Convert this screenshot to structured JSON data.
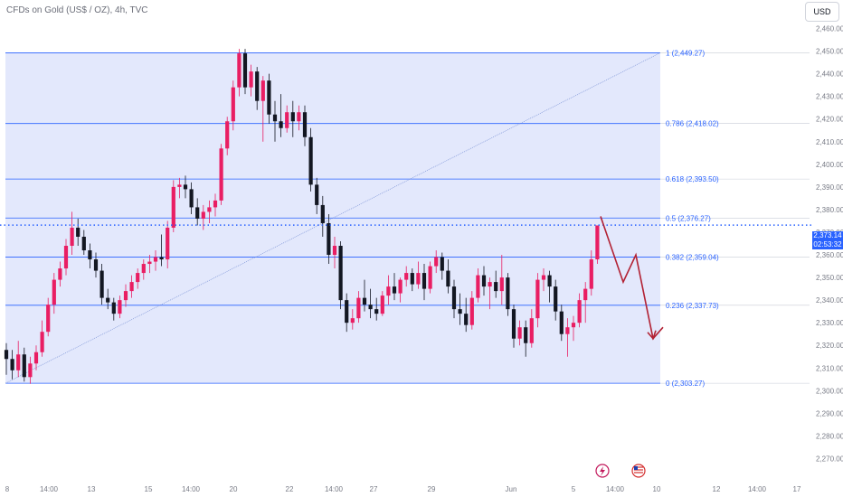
{
  "header": {
    "title": "CFDs on Gold (US$ / OZ), 4h, TVC",
    "currency": "USD"
  },
  "current_price": {
    "value": "2,373.14",
    "countdown": "02:53:32",
    "raw": 2373.14
  },
  "colors": {
    "up": "#e91e63",
    "down": "#131722",
    "fib_line": "#2962ff",
    "fib_fill": "#e3e8fc",
    "fib_text": "#2962ff",
    "arrow": "#b22234",
    "price_line": "#2962ff"
  },
  "icons": [
    "lightning-event-icon",
    "us-flag-event-icon"
  ],
  "chart_data": {
    "type": "candlestick",
    "title": "CFDs on Gold (US$ / OZ), 4h, TVC",
    "ylim": [
      2265,
      2467
    ],
    "y_ticks": [
      "2,270.00",
      "2,280.00",
      "2,290.00",
      "2,300.00",
      "2,310.00",
      "2,320.00",
      "2,330.00",
      "2,340.00",
      "2,350.00",
      "2,360.00",
      "2,370.00",
      "2,380.00",
      "2,390.00",
      "2,400.00",
      "2,410.00",
      "2,420.00",
      "2,430.00",
      "2,440.00",
      "2,450.00",
      "2,460.00"
    ],
    "x_ticks": [
      "8",
      "14:00",
      "13",
      "15",
      "14:00",
      "20",
      "22",
      "14:00",
      "27",
      "29",
      "Jun",
      "5",
      "14:00",
      "10",
      "12",
      "14:00",
      "17"
    ],
    "fib_levels": [
      {
        "ratio": "1",
        "price": 2449.27,
        "label": "1 (2,449.27)"
      },
      {
        "ratio": "0.786",
        "price": 2418.02,
        "label": "0.786 (2,418.02)"
      },
      {
        "ratio": "0.618",
        "price": 2393.5,
        "label": "0.618 (2,393.50)"
      },
      {
        "ratio": "0.5",
        "price": 2376.27,
        "label": "0.5 (2,376.27)"
      },
      {
        "ratio": "0.382",
        "price": 2359.04,
        "label": "0.382 (2,359.04)"
      },
      {
        "ratio": "0.236",
        "price": 2337.73,
        "label": "0.236 (2,337.73)"
      },
      {
        "ratio": "0",
        "price": 2303.27,
        "label": "0 (2,303.27)"
      }
    ],
    "fib_trendline": {
      "from": 2303.27,
      "to": 2449.27
    },
    "projection_path": [
      2377,
      2348,
      2360,
      2323,
      2328
    ],
    "candles": [
      [
        2318,
        2321,
        2307,
        2314
      ],
      [
        2314,
        2318,
        2305,
        2309
      ],
      [
        2309,
        2322,
        2306,
        2316
      ],
      [
        2316,
        2319,
        2304,
        2306
      ],
      [
        2306,
        2315,
        2303,
        2312
      ],
      [
        2312,
        2320,
        2309,
        2317
      ],
      [
        2317,
        2331,
        2315,
        2326
      ],
      [
        2326,
        2341,
        2324,
        2338
      ],
      [
        2338,
        2352,
        2334,
        2349
      ],
      [
        2349,
        2357,
        2346,
        2354
      ],
      [
        2354,
        2367,
        2351,
        2364
      ],
      [
        2364,
        2379,
        2360,
        2372
      ],
      [
        2372,
        2376,
        2364,
        2368
      ],
      [
        2368,
        2371,
        2360,
        2362
      ],
      [
        2362,
        2365,
        2354,
        2358
      ],
      [
        2358,
        2361,
        2350,
        2353
      ],
      [
        2353,
        2356,
        2338,
        2341
      ],
      [
        2341,
        2345,
        2336,
        2339
      ],
      [
        2339,
        2341,
        2331,
        2334
      ],
      [
        2334,
        2342,
        2332,
        2340
      ],
      [
        2340,
        2347,
        2337,
        2344
      ],
      [
        2344,
        2351,
        2341,
        2348
      ],
      [
        2348,
        2354,
        2345,
        2352
      ],
      [
        2352,
        2358,
        2349,
        2356
      ],
      [
        2356,
        2360,
        2352,
        2357
      ],
      [
        2357,
        2362,
        2353,
        2359
      ],
      [
        2359,
        2369,
        2355,
        2358
      ],
      [
        2358,
        2375,
        2354,
        2372
      ],
      [
        2372,
        2393,
        2370,
        2390
      ],
      [
        2390,
        2394,
        2385,
        2391
      ],
      [
        2391,
        2395,
        2385,
        2389
      ],
      [
        2389,
        2392,
        2378,
        2381
      ],
      [
        2381,
        2385,
        2373,
        2376
      ],
      [
        2376,
        2382,
        2371,
        2379
      ],
      [
        2379,
        2384,
        2374,
        2381
      ],
      [
        2381,
        2387,
        2377,
        2384
      ],
      [
        2384,
        2409,
        2382,
        2407
      ],
      [
        2407,
        2421,
        2404,
        2419
      ],
      [
        2419,
        2437,
        2415,
        2434
      ],
      [
        2434,
        2451,
        2430,
        2449
      ],
      [
        2449,
        2451,
        2431,
        2434
      ],
      [
        2434,
        2444,
        2430,
        2441
      ],
      [
        2441,
        2443,
        2424,
        2428
      ],
      [
        2428,
        2439,
        2410,
        2437
      ],
      [
        2437,
        2440,
        2418,
        2422
      ],
      [
        2422,
        2428,
        2410,
        2419
      ],
      [
        2419,
        2431,
        2412,
        2416
      ],
      [
        2416,
        2426,
        2414,
        2423
      ],
      [
        2423,
        2428,
        2412,
        2419
      ],
      [
        2419,
        2426,
        2415,
        2423
      ],
      [
        2423,
        2426,
        2408,
        2412
      ],
      [
        2412,
        2416,
        2388,
        2391
      ],
      [
        2391,
        2394,
        2378,
        2382
      ],
      [
        2382,
        2386,
        2368,
        2374
      ],
      [
        2374,
        2378,
        2356,
        2360
      ],
      [
        2360,
        2368,
        2354,
        2364
      ],
      [
        2364,
        2366,
        2336,
        2340
      ],
      [
        2340,
        2343,
        2326,
        2330
      ],
      [
        2330,
        2336,
        2327,
        2332
      ],
      [
        2332,
        2344,
        2330,
        2341
      ],
      [
        2341,
        2349,
        2335,
        2338
      ],
      [
        2338,
        2345,
        2332,
        2336
      ],
      [
        2336,
        2341,
        2331,
        2334
      ],
      [
        2334,
        2344,
        2333,
        2342
      ],
      [
        2342,
        2351,
        2338,
        2346
      ],
      [
        2346,
        2352,
        2340,
        2343
      ],
      [
        2343,
        2350,
        2339,
        2349
      ],
      [
        2349,
        2355,
        2346,
        2352
      ],
      [
        2352,
        2354,
        2344,
        2347
      ],
      [
        2347,
        2357,
        2345,
        2352
      ],
      [
        2352,
        2356,
        2340,
        2345
      ],
      [
        2345,
        2357,
        2343,
        2355
      ],
      [
        2355,
        2362,
        2352,
        2359
      ],
      [
        2359,
        2361,
        2349,
        2353
      ],
      [
        2353,
        2358,
        2343,
        2346
      ],
      [
        2346,
        2349,
        2332,
        2336
      ],
      [
        2336,
        2343,
        2329,
        2334
      ],
      [
        2334,
        2341,
        2326,
        2329
      ],
      [
        2329,
        2344,
        2327,
        2341
      ],
      [
        2341,
        2354,
        2339,
        2351
      ],
      [
        2351,
        2355,
        2342,
        2346
      ],
      [
        2346,
        2350,
        2336,
        2348
      ],
      [
        2348,
        2353,
        2341,
        2344
      ],
      [
        2344,
        2360,
        2338,
        2350
      ],
      [
        2350,
        2352,
        2333,
        2336
      ],
      [
        2336,
        2338,
        2319,
        2323
      ],
      [
        2323,
        2331,
        2320,
        2328
      ],
      [
        2328,
        2331,
        2315,
        2321
      ],
      [
        2321,
        2336,
        2319,
        2332
      ],
      [
        2332,
        2352,
        2328,
        2349
      ],
      [
        2349,
        2354,
        2344,
        2351
      ],
      [
        2351,
        2353,
        2339,
        2346
      ],
      [
        2346,
        2349,
        2331,
        2335
      ],
      [
        2335,
        2338,
        2322,
        2325
      ],
      [
        2325,
        2332,
        2315,
        2328
      ],
      [
        2328,
        2333,
        2322,
        2330
      ],
      [
        2330,
        2343,
        2328,
        2340
      ],
      [
        2340,
        2348,
        2330,
        2345
      ],
      [
        2345,
        2362,
        2342,
        2358
      ],
      [
        2358,
        2373,
        2356,
        2373
      ]
    ]
  }
}
